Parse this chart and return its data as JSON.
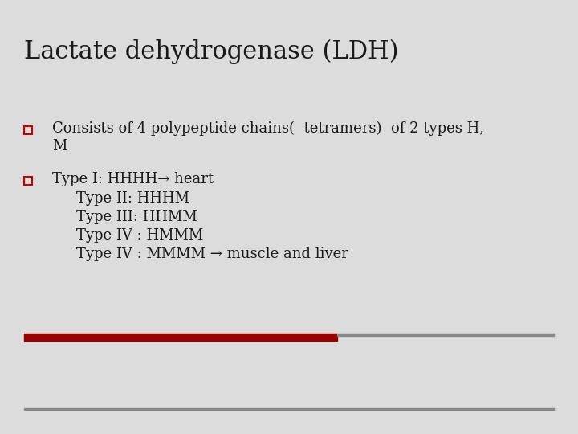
{
  "title": "Lactate dehydrogenase (LDH)",
  "title_fontsize": 22,
  "title_font": "serif",
  "title_color": "#1a1a1a",
  "bg_color": "#dcdcdc",
  "red_bar_color": "#990000",
  "thin_line_color": "#888888",
  "bottom_line_color": "#888888",
  "bullet_color": "#cc0000",
  "text_color": "#1a1a1a",
  "text_fontsize": 13,
  "text_font": "serif",
  "bullet1_line1": "Consists of 4 polypeptide chains(  tetramers)  of 2 types H,",
  "bullet1_line2": "M",
  "bullet2_line1": "Type I: HHHH→ heart",
  "sub_lines": [
    "Type II: HHHM",
    "Type III: HHMM",
    "Type IV : HMMM",
    "Type IV : MMMM → muscle and liver"
  ]
}
